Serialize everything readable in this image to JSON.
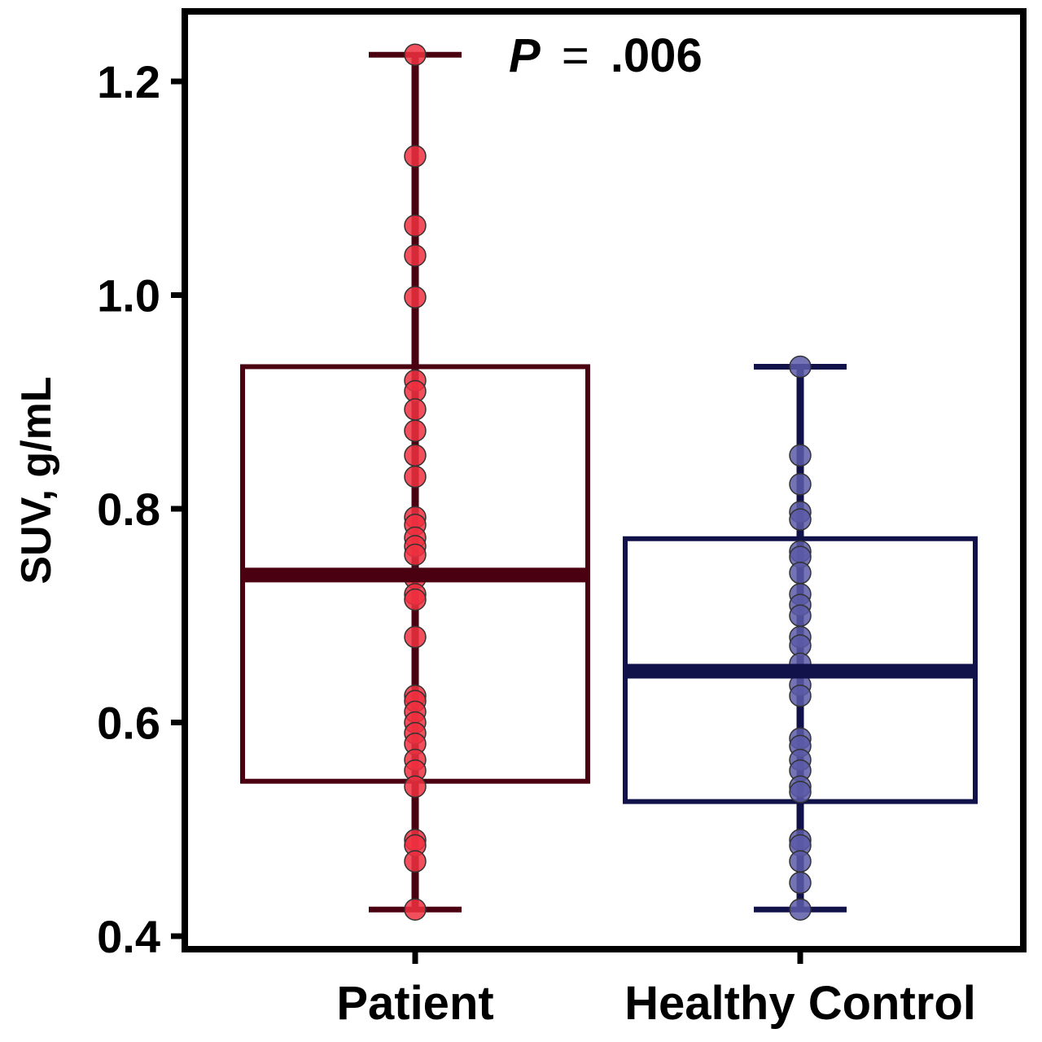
{
  "chart_data": {
    "type": "box",
    "ylabel": "SUV, g/mL",
    "ylim": [
      0.4,
      1.25
    ],
    "yticks": [
      0.4,
      0.6,
      0.8,
      1.0,
      1.2
    ],
    "ytick_labels": [
      "0.4",
      "0.6",
      "0.8",
      "1.0",
      "1.2"
    ],
    "categories": [
      "Patient",
      "Healthy Control"
    ],
    "annotation": {
      "p_label": "P",
      "equals": "=",
      "value": ".006"
    },
    "series": [
      {
        "category": "Patient",
        "color": "#4a0010",
        "point_color": "#f0303f",
        "whisker_low": 0.425,
        "q1": 0.545,
        "median": 0.738,
        "q3": 0.933,
        "whisker_high": 1.225,
        "points": [
          1.225,
          1.13,
          1.065,
          1.037,
          0.998,
          0.92,
          0.91,
          0.893,
          0.873,
          0.85,
          0.83,
          0.792,
          0.785,
          0.773,
          0.765,
          0.757,
          0.735,
          0.72,
          0.715,
          0.68,
          0.625,
          0.62,
          0.61,
          0.6,
          0.59,
          0.58,
          0.565,
          0.555,
          0.54,
          0.49,
          0.485,
          0.47,
          0.425
        ]
      },
      {
        "category": "Healthy Control",
        "color": "#12124a",
        "point_color": "#5a5aa8",
        "whisker_low": 0.425,
        "q1": 0.526,
        "median": 0.648,
        "q3": 0.772,
        "whisker_high": 0.933,
        "points": [
          0.933,
          0.85,
          0.823,
          0.797,
          0.79,
          0.76,
          0.755,
          0.74,
          0.72,
          0.71,
          0.7,
          0.68,
          0.672,
          0.655,
          0.635,
          0.625,
          0.585,
          0.578,
          0.565,
          0.555,
          0.54,
          0.535,
          0.49,
          0.485,
          0.47,
          0.45,
          0.425
        ]
      }
    ]
  }
}
